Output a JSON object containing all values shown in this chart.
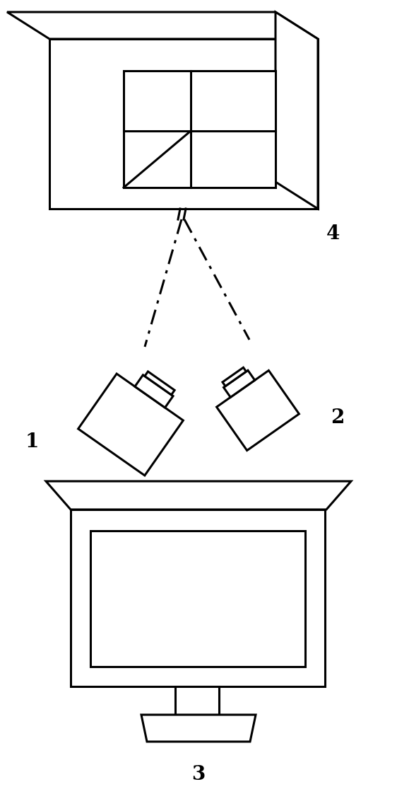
{
  "background_color": "#ffffff",
  "line_color": "#000000",
  "line_width": 2.2,
  "fig_width": 5.62,
  "fig_height": 11.46,
  "label_1": "1",
  "label_2": "2",
  "label_3": "3",
  "label_4": "4",
  "font_size_labels": 20
}
